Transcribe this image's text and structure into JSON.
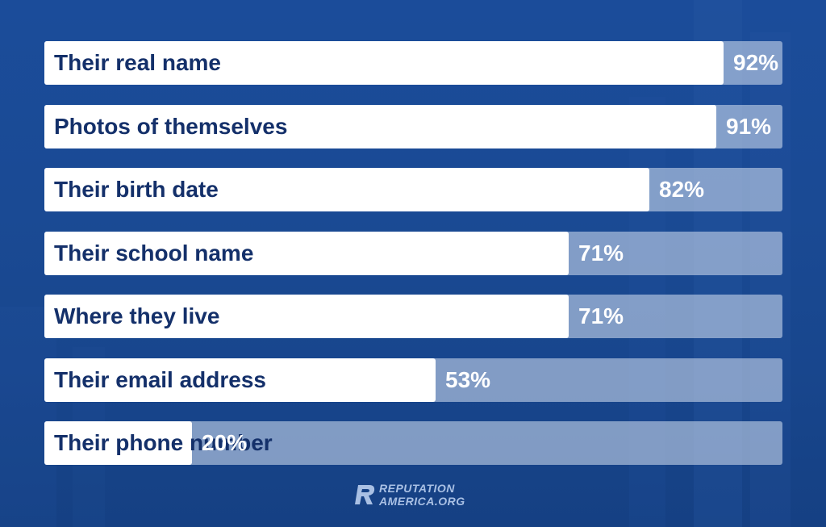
{
  "chart_data": {
    "type": "bar",
    "orientation": "horizontal",
    "categories": [
      "Their real name",
      "Photos of themselves",
      "Their birth date",
      "Their school name",
      "Where they live",
      "Their email address",
      "Their phone number"
    ],
    "values": [
      92,
      91,
      82,
      71,
      71,
      53,
      20
    ],
    "value_labels": [
      "92%",
      "91%",
      "82%",
      "71%",
      "71%",
      "53%",
      "20%"
    ],
    "xlim": [
      0,
      100
    ]
  },
  "branding": {
    "line1": "REPUTATION",
    "line2": "AMERICA.ORG",
    "logo_icon": "r-logo-icon"
  },
  "colors": {
    "background": "#1a4a94",
    "bar_fill": "#ffffff",
    "bar_track": "#c4d2e8",
    "label_text": "#14306a",
    "value_text": "#ffffff"
  }
}
